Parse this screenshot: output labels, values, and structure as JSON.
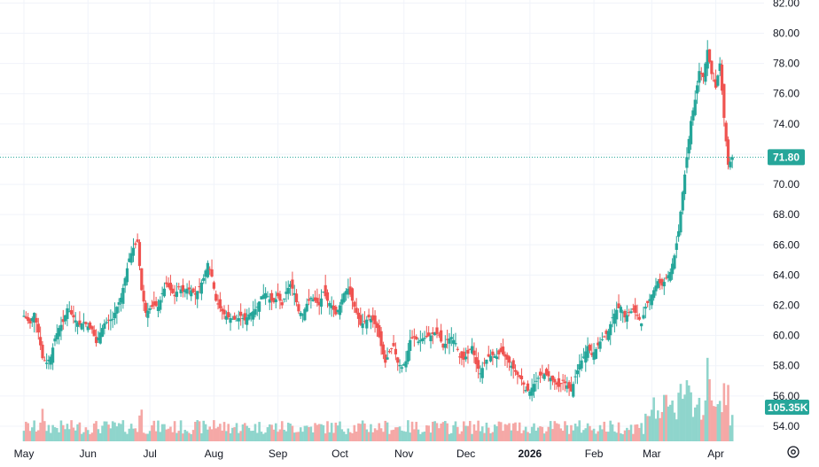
{
  "chart_data": {
    "type": "candlestick",
    "yticks": [
      "54.00",
      "56.00",
      "58.00",
      "60.00",
      "62.00",
      "64.00",
      "66.00",
      "68.00",
      "70.00",
      "72.00",
      "74.00",
      "76.00",
      "78.00",
      "80.00",
      "82.00"
    ],
    "ylim": [
      53.0,
      82.2
    ],
    "xticks": [
      {
        "label": "May",
        "day": 0,
        "bold": false
      },
      {
        "label": "Jun",
        "day": 31,
        "bold": false
      },
      {
        "label": "Jul",
        "day": 61,
        "bold": false
      },
      {
        "label": "Aug",
        "day": 92,
        "bold": false
      },
      {
        "label": "Sep",
        "day": 123,
        "bold": false
      },
      {
        "label": "Oct",
        "day": 153,
        "bold": false
      },
      {
        "label": "Nov",
        "day": 184,
        "bold": false
      },
      {
        "label": "Dec",
        "day": 214,
        "bold": false
      },
      {
        "label": "2026",
        "day": 245,
        "bold": true
      },
      {
        "label": "Feb",
        "day": 276,
        "bold": false
      },
      {
        "label": "Mar",
        "day": 304,
        "bold": false
      },
      {
        "label": "Apr",
        "day": 335,
        "bold": false
      }
    ],
    "closes": [
      [
        0,
        61.3
      ],
      [
        3,
        60.8
      ],
      [
        5,
        61.5
      ],
      [
        7,
        60.2
      ],
      [
        9,
        58.5
      ],
      [
        11,
        58.2
      ],
      [
        13,
        58.6
      ],
      [
        15,
        59.8
      ],
      [
        17,
        60.5
      ],
      [
        19,
        60.9
      ],
      [
        21,
        61.8
      ],
      [
        23,
        61.4
      ],
      [
        25,
        61.0
      ],
      [
        27,
        60.7
      ],
      [
        29,
        60.9
      ],
      [
        31,
        60.6
      ],
      [
        33,
        60.4
      ],
      [
        35,
        59.5
      ],
      [
        37,
        60.2
      ],
      [
        39,
        60.8
      ],
      [
        41,
        61.0
      ],
      [
        43,
        61.1
      ],
      [
        45,
        61.9
      ],
      [
        47,
        62.5
      ],
      [
        49,
        63.8
      ],
      [
        51,
        65.1
      ],
      [
        53,
        65.8
      ],
      [
        55,
        66.2
      ],
      [
        57,
        63.0
      ],
      [
        59,
        61.5
      ],
      [
        61,
        61.8
      ],
      [
        63,
        62.0
      ],
      [
        65,
        61.9
      ],
      [
        67,
        62.8
      ],
      [
        69,
        63.4
      ],
      [
        71,
        63.0
      ],
      [
        73,
        62.6
      ],
      [
        75,
        63.2
      ],
      [
        77,
        62.9
      ],
      [
        79,
        63.1
      ],
      [
        81,
        63.0
      ],
      [
        83,
        62.7
      ],
      [
        85,
        63.2
      ],
      [
        87,
        63.8
      ],
      [
        89,
        64.8
      ],
      [
        91,
        63.9
      ],
      [
        93,
        62.3
      ],
      [
        95,
        61.8
      ],
      [
        97,
        61.4
      ],
      [
        99,
        61.2
      ],
      [
        101,
        61.1
      ],
      [
        103,
        61.0
      ],
      [
        105,
        61.3
      ],
      [
        107,
        61.0
      ],
      [
        109,
        61.4
      ],
      [
        111,
        61.6
      ],
      [
        113,
        61.9
      ],
      [
        115,
        62.6
      ],
      [
        117,
        62.8
      ],
      [
        119,
        62.4
      ],
      [
        121,
        62.2
      ],
      [
        123,
        62.6
      ],
      [
        125,
        62.0
      ],
      [
        127,
        62.9
      ],
      [
        129,
        63.4
      ],
      [
        131,
        62.8
      ],
      [
        133,
        61.6
      ],
      [
        135,
        61.4
      ],
      [
        137,
        62.1
      ],
      [
        139,
        62.5
      ],
      [
        141,
        62.3
      ],
      [
        143,
        62.0
      ],
      [
        145,
        62.9
      ],
      [
        147,
        62.3
      ],
      [
        149,
        62.0
      ],
      [
        151,
        61.4
      ],
      [
        153,
        62.0
      ],
      [
        155,
        62.8
      ],
      [
        157,
        63.1
      ],
      [
        159,
        62.3
      ],
      [
        161,
        61.5
      ],
      [
        163,
        60.7
      ],
      [
        165,
        60.9
      ],
      [
        167,
        61.2
      ],
      [
        169,
        61.0
      ],
      [
        171,
        60.5
      ],
      [
        173,
        59.3
      ],
      [
        175,
        58.2
      ],
      [
        177,
        58.9
      ],
      [
        179,
        59.3
      ],
      [
        181,
        58.2
      ],
      [
        183,
        57.9
      ],
      [
        185,
        58.3
      ],
      [
        187,
        59.7
      ],
      [
        189,
        59.9
      ],
      [
        191,
        59.6
      ],
      [
        193,
        59.8
      ],
      [
        195,
        59.9
      ],
      [
        197,
        60.0
      ],
      [
        199,
        60.2
      ],
      [
        201,
        60.0
      ],
      [
        203,
        59.2
      ],
      [
        205,
        59.7
      ],
      [
        207,
        59.9
      ],
      [
        209,
        59.5
      ],
      [
        211,
        58.6
      ],
      [
        213,
        58.4
      ],
      [
        215,
        58.8
      ],
      [
        217,
        59.3
      ],
      [
        219,
        58.1
      ],
      [
        221,
        57.5
      ],
      [
        223,
        58.2
      ],
      [
        225,
        58.6
      ],
      [
        227,
        58.7
      ],
      [
        229,
        58.6
      ],
      [
        231,
        58.9
      ],
      [
        233,
        58.6
      ],
      [
        235,
        58.2
      ],
      [
        237,
        57.8
      ],
      [
        239,
        57.4
      ],
      [
        241,
        57.1
      ],
      [
        243,
        56.4
      ],
      [
        245,
        56.3
      ],
      [
        247,
        56.8
      ],
      [
        249,
        57.2
      ],
      [
        251,
        57.5
      ],
      [
        253,
        57.4
      ],
      [
        255,
        57.2
      ],
      [
        257,
        56.9
      ],
      [
        259,
        56.6
      ],
      [
        261,
        57.0
      ],
      [
        263,
        56.7
      ],
      [
        265,
        56.3
      ],
      [
        267,
        57.3
      ],
      [
        269,
        58.1
      ],
      [
        271,
        58.6
      ],
      [
        273,
        59.3
      ],
      [
        275,
        58.7
      ],
      [
        277,
        59.1
      ],
      [
        279,
        59.6
      ],
      [
        281,
        59.9
      ],
      [
        283,
        60.3
      ],
      [
        285,
        61.2
      ],
      [
        287,
        61.7
      ],
      [
        289,
        61.9
      ],
      [
        291,
        61.2
      ],
      [
        293,
        61.5
      ],
      [
        295,
        61.7
      ],
      [
        297,
        61.3
      ],
      [
        299,
        60.8
      ],
      [
        301,
        61.9
      ],
      [
        303,
        62.4
      ],
      [
        305,
        63.0
      ],
      [
        307,
        63.6
      ],
      [
        309,
        63.3
      ],
      [
        311,
        63.8
      ],
      [
        313,
        64.2
      ],
      [
        315,
        65.3
      ],
      [
        317,
        66.9
      ],
      [
        319,
        69.5
      ],
      [
        321,
        71.8
      ],
      [
        323,
        74.2
      ],
      [
        325,
        75.6
      ],
      [
        327,
        77.5
      ],
      [
        329,
        77.1
      ],
      [
        331,
        78.9
      ],
      [
        333,
        77.3
      ],
      [
        335,
        76.4
      ],
      [
        337,
        78.0
      ],
      [
        339,
        74.4
      ],
      [
        341,
        71.3
      ],
      [
        342,
        71.5
      ],
      [
        343,
        71.8
      ]
    ],
    "last_price": "71.80",
    "volume_label": "105.35K"
  },
  "colors": {
    "up": "#26a69a",
    "down": "#ef5350",
    "up_vol": "#8fd5cc",
    "down_vol": "#f5a8a6",
    "grid": "#f0f3fa",
    "price_line": "#26a69a"
  },
  "toolbar": {
    "settings_icon": "gear-icon"
  }
}
